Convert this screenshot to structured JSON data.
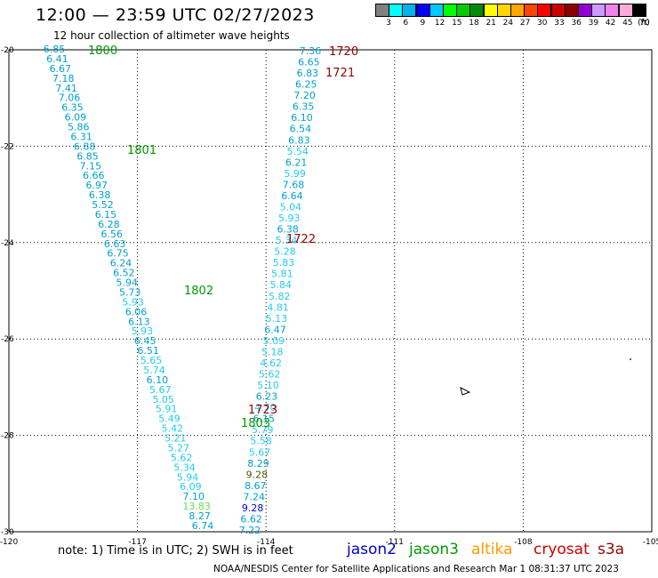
{
  "header": {
    "title": "12:00 — 23:59 UTC 02/27/2023",
    "subtitle": "12 hour collection of altimeter wave heights"
  },
  "legend_scale": {
    "colors": [
      "#808080",
      "#00ffff",
      "#00b2ee",
      "#0000ff",
      "#00c8ff",
      "#00ff00",
      "#00cd00",
      "#008b00",
      "#ffff00",
      "#ffd700",
      "#ffa500",
      "#ff4500",
      "#ff0000",
      "#cd0000",
      "#8b0000",
      "#9400d3",
      "#cc99ff",
      "#ee82ee",
      "#ffaadd",
      "#000000"
    ],
    "labels": [
      "3",
      "6",
      "9",
      "12",
      "15",
      "18",
      "21",
      "24",
      "27",
      "30",
      "33",
      "36",
      "39",
      "42",
      "45",
      "70"
    ],
    "unit": "(ft)"
  },
  "axes": {
    "x_ticks": [
      "-120",
      "-117",
      "-114",
      "-111",
      "-108",
      "-105"
    ],
    "y_ticks": [
      "-20",
      "-22",
      "-24",
      "-26",
      "-28",
      "-30"
    ],
    "lon_range": [
      -120,
      -105
    ],
    "lat_range": [
      -30,
      -20
    ]
  },
  "track_left": {
    "color": "#00aacc",
    "values": [
      "6.85",
      "6.41",
      "6.67",
      "7.18",
      "7.41",
      "7.06",
      "6.35",
      "6.09",
      "5.86",
      "6.31",
      "6.88",
      "6.85",
      "7.15",
      "6.66",
      "6.97",
      "6.38",
      "5.52",
      "6.15",
      "6.28",
      "6.56",
      "6.63",
      "6.75",
      "6.24",
      "6.52",
      "5.94",
      "5.73",
      "5.93",
      "6.06",
      "6.13",
      "5.93",
      "6.45",
      "6.51",
      "5.65",
      "5.74",
      "6.10",
      "5.67",
      "5.05",
      "5.91",
      "5.49",
      "5.42",
      "5.21",
      "5.27",
      "5.62",
      "5.34",
      "5.94",
      "6.09",
      "7.10",
      "13.83",
      "8.27",
      "6.74"
    ],
    "colors": [
      "c1",
      "c1",
      "c1",
      "c1",
      "c1",
      "c1",
      "c1",
      "c1",
      "c1",
      "c1",
      "c1",
      "c1",
      "c1",
      "c1",
      "c1",
      "c1",
      "c1",
      "c1",
      "c1",
      "c1",
      "c1",
      "c1",
      "c1",
      "c1",
      "c1",
      "c1",
      "c2",
      "c1",
      "c1",
      "c2",
      "c1",
      "c1",
      "c2",
      "c2",
      "c1",
      "c2",
      "c2",
      "c2",
      "c2",
      "c2",
      "c2",
      "c2",
      "c2",
      "c2",
      "c2",
      "c2",
      "c1",
      "g",
      "c1",
      "c1"
    ]
  },
  "track_right": {
    "values": [
      "7.36",
      "6.65",
      "6.83",
      "6.25",
      "7.20",
      "6.35",
      "6.10",
      "6.54",
      "6.83",
      "5.54",
      "6.21",
      "5.99",
      "7.68",
      "6.64",
      "5.04",
      "5.93",
      "6.38",
      "5.34",
      "5.28",
      "5.83",
      "5.81",
      "5.84",
      "5.82",
      "4.81",
      "5.13",
      "6.47",
      "5.09",
      "5.18",
      "4.62",
      "5.62",
      "5.10",
      "6.23",
      "4.70",
      "6.15",
      "5.79",
      "5.58",
      "5.67",
      "8.29",
      "9.28",
      "8.67",
      "7.24",
      "9.28",
      "6.62",
      "7.22"
    ],
    "colors": [
      "c1",
      "c1",
      "c1",
      "c1",
      "c1",
      "c1",
      "c1",
      "c1",
      "c1",
      "c2",
      "c1",
      "c2",
      "c1",
      "c1",
      "c2",
      "c2",
      "c1",
      "c2",
      "c2",
      "c2",
      "c2",
      "c2",
      "c2",
      "c2",
      "c2",
      "c1",
      "c2",
      "c2",
      "c2",
      "c2",
      "c2",
      "c1",
      "c2",
      "c1",
      "c2",
      "c2",
      "c2",
      "c1",
      "dk",
      "c1",
      "c1",
      "bl",
      "c1",
      "c1"
    ]
  },
  "time_labels": {
    "green": [
      "1800",
      "1801",
      "1802",
      "1803"
    ],
    "red": [
      "1720",
      "1721",
      "1722",
      "1723"
    ]
  },
  "footer": {
    "note": "note:  1) Time is in UTC;  2) SWH is in feet",
    "satellites": [
      {
        "name": "jason2",
        "color": "#0000cc"
      },
      {
        "name": "jason3",
        "color": "#009900"
      },
      {
        "name": "altika",
        "color": "#ff9900"
      },
      {
        "name": "cryosat",
        "color": "#cc0000"
      },
      {
        "name": "s3a",
        "color": "#990000"
      }
    ],
    "credit": "NOAA/NESDIS Center for Satellite Applications and Research    Mar  1 08:31:37 UTC 2023"
  }
}
